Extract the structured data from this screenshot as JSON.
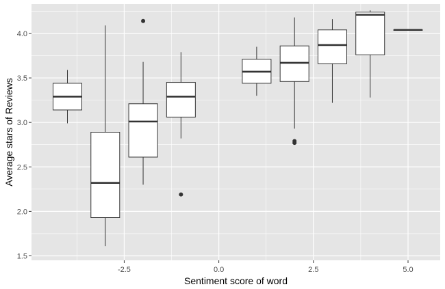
{
  "chart_data": {
    "type": "boxplot",
    "title": "",
    "xlabel": "Sentiment score of word",
    "ylabel": "Average stars of Reviews",
    "xlim": [
      -4.95,
      5.85
    ],
    "ylim": [
      1.45,
      4.33
    ],
    "x_ticks": [
      -2.5,
      0.0,
      2.5,
      5.0
    ],
    "x_tick_labels": [
      "-2.5",
      "0.0",
      "2.5",
      "5.0"
    ],
    "y_ticks": [
      1.5,
      2.0,
      2.5,
      3.0,
      3.5,
      4.0
    ],
    "y_tick_labels": [
      "1.5",
      "2.0",
      "2.5",
      "3.0",
      "3.5",
      "4.0"
    ],
    "grid": true,
    "panel_background": "#e5e5e5",
    "grid_color": "#ffffff",
    "box_fill": "#ffffff",
    "box_stroke": "#333333",
    "box_width": 0.76,
    "boxes": [
      {
        "x": -4,
        "min": 2.99,
        "q1": 3.14,
        "median": 3.29,
        "q3": 3.44,
        "max": 3.59,
        "outliers": []
      },
      {
        "x": -3,
        "min": 1.61,
        "q1": 1.93,
        "median": 2.32,
        "q3": 2.89,
        "max": 4.09,
        "outliers": []
      },
      {
        "x": -2,
        "min": 2.3,
        "q1": 2.61,
        "median": 3.01,
        "q3": 3.21,
        "max": 3.68,
        "outliers": [
          4.14
        ]
      },
      {
        "x": -1,
        "min": 2.82,
        "q1": 3.06,
        "median": 3.29,
        "q3": 3.45,
        "max": 3.79,
        "outliers": [
          2.19
        ]
      },
      {
        "x": 1,
        "min": 3.3,
        "q1": 3.44,
        "median": 3.57,
        "q3": 3.71,
        "max": 3.85,
        "outliers": []
      },
      {
        "x": 2,
        "min": 2.93,
        "q1": 3.46,
        "median": 3.67,
        "q3": 3.86,
        "max": 4.18,
        "outliers": [
          2.79,
          2.77
        ]
      },
      {
        "x": 3,
        "min": 3.22,
        "q1": 3.66,
        "median": 3.87,
        "q3": 4.04,
        "max": 4.16,
        "outliers": []
      },
      {
        "x": 4,
        "min": 3.28,
        "q1": 3.76,
        "median": 4.21,
        "q3": 4.24,
        "max": 4.26,
        "outliers": []
      },
      {
        "x": 5,
        "min": 4.04,
        "q1": 4.04,
        "median": 4.04,
        "q3": 4.04,
        "max": 4.04,
        "outliers": []
      }
    ]
  }
}
